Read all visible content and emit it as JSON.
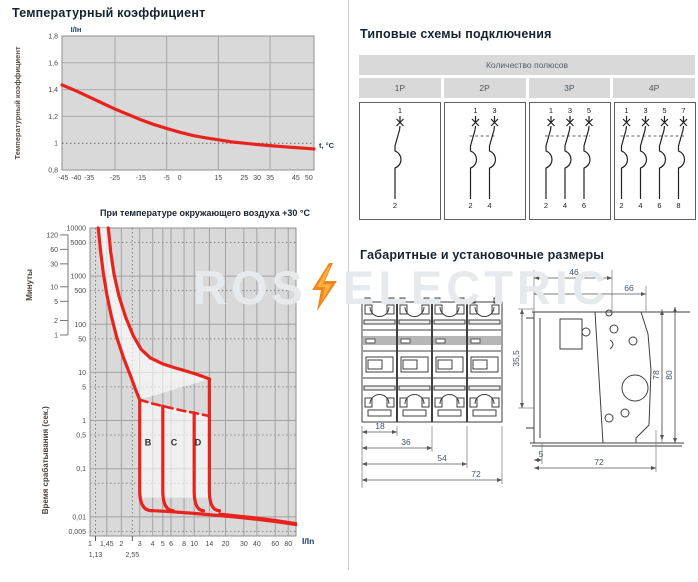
{
  "page": {
    "watermark": {
      "left": "ROS",
      "right": "ELECTRIC",
      "bolt_color_outer": "#F2861D",
      "bolt_color_inner": "#FBB040"
    },
    "colors": {
      "accent_red": "#E8231E",
      "heading_navy": "#17232f",
      "axis_navy": "#1d3a5f",
      "plot_bg": "#d9d9d9",
      "grid": "#a2a2a2",
      "tick_text": "#4a4a4a",
      "dim_text": "#44546A"
    }
  },
  "temp_section": {
    "title": "Температурный коэффициент"
  },
  "trip_section": {
    "title": "При температуре окружающего воздуха +30 °С"
  },
  "chart_data": [
    {
      "type": "line",
      "title": "Температурный коэффициент",
      "ylabel": "Температурный коэффициент",
      "y_top_label": "I/Iн",
      "xlabel": "t, °C",
      "xlim": [
        -45.5,
        52
      ],
      "ylim": [
        0.8,
        1.8
      ],
      "grid_x": [
        -25,
        -5,
        15,
        35
      ],
      "grid_y_solid": [
        1.6,
        1.4,
        1.2
      ],
      "grid_y_dotted": [
        1.0
      ],
      "x_ticks": [
        [
          -45,
          "-45"
        ],
        [
          -40,
          "-40"
        ],
        [
          -35,
          "-35"
        ],
        [
          -25,
          "-25"
        ],
        [
          -15,
          "-15"
        ],
        [
          -5,
          "-5"
        ],
        [
          0,
          "0"
        ],
        [
          15,
          "15"
        ],
        [
          25,
          "25"
        ],
        [
          30,
          "30"
        ],
        [
          35,
          "35"
        ],
        [
          45,
          "45"
        ],
        [
          50,
          "50"
        ]
      ],
      "y_ticks": [
        [
          1.8,
          "1,8"
        ],
        [
          1.6,
          "1,6"
        ],
        [
          1.4,
          "1,4"
        ],
        [
          1.2,
          "1,2"
        ],
        [
          1.0,
          "1"
        ],
        [
          0.8,
          "0,8"
        ]
      ],
      "series": [
        {
          "name": "temperature-coefficient",
          "color": "#E8231E",
          "points": [
            [
              -45.5,
              1.435
            ],
            [
              -40,
              1.39
            ],
            [
              -35,
              1.345
            ],
            [
              -30,
              1.3
            ],
            [
              -25,
              1.255
            ],
            [
              -20,
              1.215
            ],
            [
              -15,
              1.175
            ],
            [
              -10,
              1.14
            ],
            [
              -5,
              1.11
            ],
            [
              0,
              1.082
            ],
            [
              5,
              1.058
            ],
            [
              10,
              1.04
            ],
            [
              15,
              1.025
            ],
            [
              20,
              1.01
            ],
            [
              25,
              1.0
            ],
            [
              30,
              0.99
            ],
            [
              35,
              0.982
            ],
            [
              40,
              0.974
            ],
            [
              45,
              0.967
            ],
            [
              52,
              0.957
            ]
          ]
        }
      ]
    },
    {
      "type": "line",
      "title": "При температуре окружающего воздуха +30 °С",
      "xlabel": "I/In",
      "ylabel": "Время срабатывания (сек.)",
      "ylabel2": "Минуты",
      "x_scale": "log",
      "y_scale": "log",
      "xlim": [
        1,
        95
      ],
      "ylim": [
        0.004,
        10000
      ],
      "grid_x_solid": [
        1.45,
        2,
        3,
        4,
        5,
        6,
        8,
        10,
        14,
        20,
        30,
        40,
        60,
        80
      ],
      "grid_x_dotted": [
        1.13,
        2.55
      ],
      "grid_y_solid": [
        1000,
        100,
        10,
        1,
        0.1,
        0.01
      ],
      "grid_y_dotted": [
        5000,
        500,
        50,
        5,
        0.5,
        0.05,
        0.005
      ],
      "x_ticks": [
        [
          1,
          "1"
        ],
        [
          1.45,
          "1,45"
        ],
        [
          2,
          "2"
        ],
        [
          3,
          "3"
        ],
        [
          4,
          "4"
        ],
        [
          5,
          "5"
        ],
        [
          6,
          "6"
        ],
        [
          8,
          "8"
        ],
        [
          10,
          "10"
        ],
        [
          14,
          "14"
        ],
        [
          20,
          "20"
        ],
        [
          30,
          "30"
        ],
        [
          40,
          "40"
        ],
        [
          60,
          "60"
        ],
        [
          80,
          "80"
        ]
      ],
      "x_ticks_row2": [
        [
          1.13,
          "1,13"
        ],
        [
          2.55,
          "2,55"
        ]
      ],
      "y_ticks": [
        [
          10000,
          "10000"
        ],
        [
          5000,
          "5000"
        ],
        [
          1000,
          "1000"
        ],
        [
          500,
          "500"
        ],
        [
          100,
          "100"
        ],
        [
          50,
          "50"
        ],
        [
          10,
          "10"
        ],
        [
          5,
          "5"
        ],
        [
          1,
          "1"
        ],
        [
          0.5,
          "0,5"
        ],
        [
          0.1,
          "0,1"
        ],
        [
          0.01,
          "0,01"
        ],
        [
          0.005,
          "0,005"
        ]
      ],
      "minutes_ticks": [
        [
          120,
          "120"
        ],
        [
          60,
          "60"
        ],
        [
          30,
          "30"
        ],
        [
          10,
          "10"
        ],
        [
          5,
          "5"
        ],
        [
          2,
          "2"
        ],
        [
          1,
          "1"
        ]
      ],
      "zones": [
        {
          "label": "B",
          "x": 3.6
        },
        {
          "label": "C",
          "x": 6.4
        },
        {
          "label": "D",
          "x": 10.9
        }
      ],
      "zone_label_y": 0.3,
      "curve_color": "#E8231E",
      "curves": {
        "lower_solid": [
          [
            1.2,
            10000
          ],
          [
            1.26,
            3500
          ],
          [
            1.34,
            1200
          ],
          [
            1.45,
            420
          ],
          [
            1.6,
            150
          ],
          [
            1.8,
            55
          ],
          [
            2.1,
            20
          ],
          [
            2.45,
            8.5
          ],
          [
            2.75,
            4.3
          ],
          [
            3,
            2.7
          ]
        ],
        "lower_dashed": [
          [
            3,
            2.7
          ],
          [
            4,
            2.25
          ],
          [
            5,
            2.0
          ],
          [
            6,
            1.82
          ],
          [
            8,
            1.58
          ],
          [
            10,
            1.45
          ],
          [
            12,
            1.33
          ],
          [
            13.6,
            1.26
          ]
        ],
        "upper_solid": [
          [
            1.5,
            10000
          ],
          [
            1.58,
            3200
          ],
          [
            1.7,
            1100
          ],
          [
            1.9,
            380
          ],
          [
            2.2,
            140
          ],
          [
            2.6,
            58
          ],
          [
            3.1,
            30
          ],
          [
            3.8,
            20
          ],
          [
            5,
            15
          ],
          [
            6.5,
            12.5
          ],
          [
            8,
            11
          ],
          [
            10,
            9.5
          ],
          [
            12,
            8.3
          ],
          [
            14,
            7.3
          ]
        ],
        "verticals": [
          {
            "zone": "B-lower",
            "x": 3,
            "top": 2.7,
            "hook_to": 3.9
          },
          {
            "zone": "B-upper",
            "x": 5,
            "top": 2.0,
            "hook_to": 6.3
          },
          {
            "zone": "C-upper",
            "x": 10,
            "top": 1.45,
            "hook_to": 12.3
          },
          {
            "zone": "D-upper",
            "x": 14,
            "top": 7.3,
            "hook_to": 17.5
          }
        ],
        "tail_main": [
          [
            3.9,
            0.0135
          ],
          [
            6,
            0.0128
          ],
          [
            10,
            0.0118
          ],
          [
            16,
            0.0108
          ],
          [
            25,
            0.0099
          ],
          [
            40,
            0.0089
          ],
          [
            60,
            0.008
          ],
          [
            80,
            0.0073
          ],
          [
            95,
            0.0069
          ]
        ],
        "tail_lower": [
          [
            17.5,
            0.0115
          ],
          [
            25,
            0.0106
          ],
          [
            40,
            0.0095
          ],
          [
            60,
            0.0085
          ],
          [
            80,
            0.0077
          ],
          [
            95,
            0.0073
          ]
        ],
        "white_bands": [
          [
            [
              3,
              2.7
            ],
            [
              5,
              2.0
            ],
            [
              5,
              0.025
            ],
            [
              3,
              0.025
            ]
          ],
          [
            [
              5,
              2.0
            ],
            [
              10,
              1.45
            ],
            [
              10,
              0.025
            ],
            [
              5,
              0.025
            ]
          ],
          [
            [
              10,
              1.45
            ],
            [
              14,
              1.26
            ],
            [
              14,
              0.025
            ],
            [
              10,
              0.025
            ]
          ]
        ]
      }
    }
  ],
  "schemes": {
    "title": "Типовые схемы подключения",
    "table_header": "Количество полюсов",
    "columns": [
      {
        "label": "1P",
        "poles": 1,
        "top": [
          "1"
        ],
        "bottom": [
          "2"
        ]
      },
      {
        "label": "2P",
        "poles": 2,
        "top": [
          "1",
          "3"
        ],
        "bottom": [
          "2",
          "4"
        ]
      },
      {
        "label": "3P",
        "poles": 3,
        "top": [
          "1",
          "3",
          "5"
        ],
        "bottom": [
          "2",
          "4",
          "6"
        ]
      },
      {
        "label": "4P",
        "poles": 4,
        "top": [
          "1",
          "3",
          "5",
          "7"
        ],
        "bottom": [
          "2",
          "4",
          "6",
          "8"
        ]
      }
    ]
  },
  "dimensions": {
    "title": "Габаритные и установочные размеры",
    "front_dims": [
      "18",
      "36",
      "54",
      "72"
    ],
    "side_dims": {
      "top_46": "46",
      "top_66": "66",
      "right_78": "78",
      "right_80": "80",
      "left_355": "35,5",
      "bottom_5": "5",
      "bottom_72": "72"
    }
  }
}
